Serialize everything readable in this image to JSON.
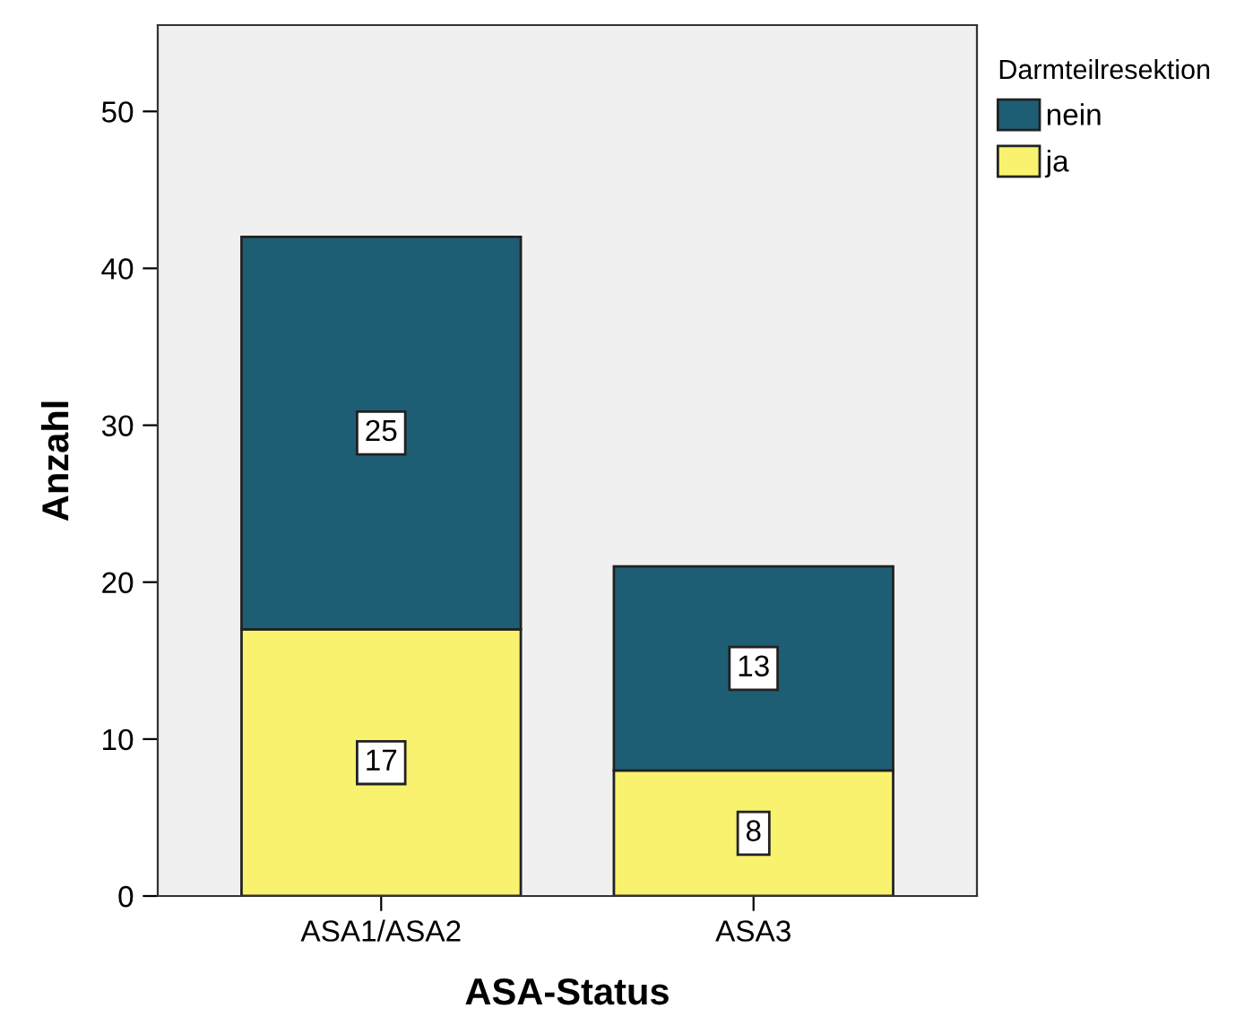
{
  "chart_data": {
    "type": "bar",
    "stacked": true,
    "xlabel": "ASA-Status",
    "ylabel": "Anzahl",
    "legend_title": "Darmteilresektion",
    "legend": "top right",
    "grid": false,
    "data_labels": true,
    "categories": [
      "ASA1/ASA2",
      "ASA3"
    ],
    "series": [
      {
        "name": "ja",
        "color": "#f9f26f",
        "values": [
          17,
          8
        ]
      },
      {
        "name": "nein",
        "color": "#1d5e74",
        "values": [
          25,
          13
        ]
      }
    ],
    "ylim": [
      0,
      55.5
    ],
    "yticks": [
      0,
      10,
      20,
      30,
      40,
      50
    ]
  }
}
